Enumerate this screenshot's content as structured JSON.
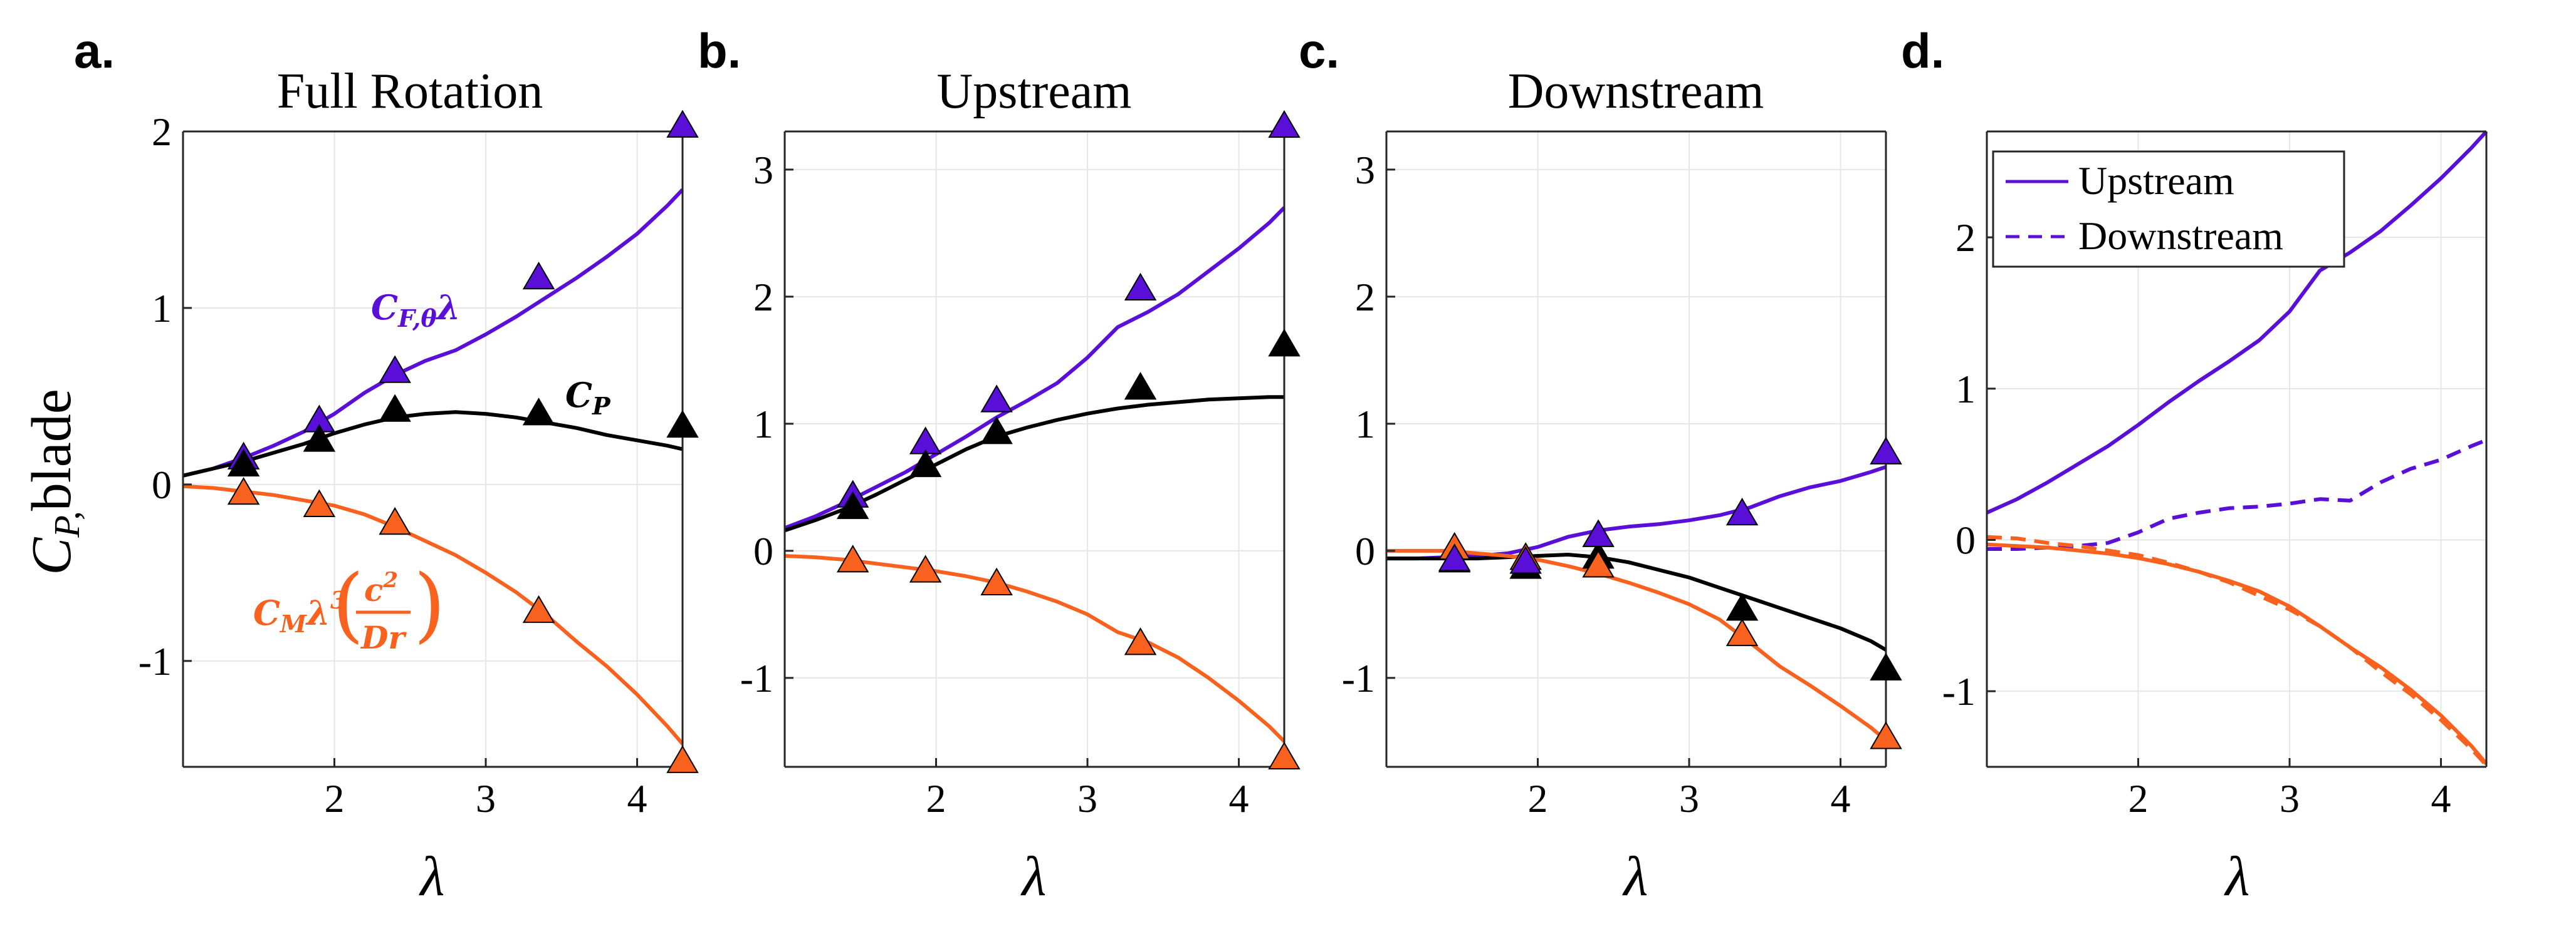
{
  "figure": {
    "colors": {
      "purple": "#5a0fd8",
      "black": "#000000",
      "orange": "#f9621e",
      "grid": "#e6e6e6",
      "axis": "#262626"
    },
    "ylabel": {
      "main": "C",
      "sub": "P,",
      "tail": "blade"
    },
    "xlabel": "λ",
    "annotations": {
      "cf": {
        "main": "C",
        "sub": "F,θ",
        "tail": "λ"
      },
      "cp": {
        "main": "C",
        "sub": "P"
      },
      "cm": {
        "main": "C",
        "sub": "M",
        "mid": "λ",
        "sup": "3",
        "frac_num": "c",
        "frac_num_sup": "2",
        "frac_den": "Dr"
      }
    }
  },
  "chart_data": [
    {
      "type": "line",
      "letter": "a.",
      "title": "Full Rotation",
      "xlim": [
        1.0,
        4.3
      ],
      "ylim": [
        -1.6,
        2.0
      ],
      "xticks": [
        2,
        3,
        4
      ],
      "yticks": [
        -1,
        0,
        1,
        2
      ],
      "xtick_labels": [
        "2",
        "3",
        "4"
      ],
      "ytick_labels": [
        "-1",
        "0",
        "1",
        "2"
      ],
      "series": [
        {
          "name": "C_F,θ λ",
          "color": "purple",
          "dash": "solid",
          "x": [
            1.0,
            1.2,
            1.4,
            1.6,
            1.8,
            2.0,
            2.2,
            2.4,
            2.6,
            2.8,
            3.0,
            3.2,
            3.4,
            3.6,
            3.8,
            4.0,
            4.2,
            4.3
          ],
          "y": [
            0.05,
            0.09,
            0.15,
            0.22,
            0.3,
            0.4,
            0.52,
            0.62,
            0.7,
            0.76,
            0.85,
            0.95,
            1.06,
            1.17,
            1.29,
            1.42,
            1.58,
            1.67
          ]
        },
        {
          "name": "C_P",
          "color": "black",
          "dash": "solid",
          "x": [
            1.0,
            1.2,
            1.4,
            1.6,
            1.8,
            2.0,
            2.2,
            2.4,
            2.6,
            2.8,
            3.0,
            3.2,
            3.4,
            3.6,
            3.8,
            4.0,
            4.2,
            4.3
          ],
          "y": [
            0.05,
            0.09,
            0.13,
            0.18,
            0.23,
            0.29,
            0.34,
            0.38,
            0.4,
            0.41,
            0.4,
            0.38,
            0.35,
            0.32,
            0.28,
            0.25,
            0.22,
            0.2
          ]
        },
        {
          "name": "C_M λ^3 (c^2/Dr)",
          "color": "orange",
          "dash": "solid",
          "x": [
            1.0,
            1.2,
            1.4,
            1.6,
            1.8,
            2.0,
            2.2,
            2.4,
            2.6,
            2.8,
            3.0,
            3.2,
            3.4,
            3.6,
            3.8,
            4.0,
            4.2,
            4.3
          ],
          "y": [
            -0.01,
            -0.02,
            -0.04,
            -0.06,
            -0.09,
            -0.12,
            -0.17,
            -0.24,
            -0.32,
            -0.4,
            -0.5,
            -0.61,
            -0.74,
            -0.89,
            -1.03,
            -1.19,
            -1.37,
            -1.47
          ]
        }
      ],
      "markers": [
        {
          "color": "purple",
          "x": [
            1.4,
            1.9,
            2.4,
            3.35,
            4.3
          ],
          "y": [
            0.15,
            0.36,
            0.64,
            1.17,
            2.03
          ]
        },
        {
          "color": "black",
          "x": [
            1.4,
            1.9,
            2.4,
            3.35,
            4.3
          ],
          "y": [
            0.11,
            0.25,
            0.42,
            0.4,
            0.33
          ]
        },
        {
          "color": "orange",
          "x": [
            1.4,
            1.9,
            2.4,
            3.35,
            4.3
          ],
          "y": [
            -0.05,
            -0.12,
            -0.22,
            -0.72,
            -1.57
          ]
        }
      ]
    },
    {
      "type": "line",
      "letter": "b.",
      "title": "Upstream",
      "xlim": [
        1.0,
        4.3
      ],
      "ylim": [
        -1.7,
        3.3
      ],
      "xticks": [
        2,
        3,
        4
      ],
      "yticks": [
        -1,
        0,
        1,
        2,
        3
      ],
      "xtick_labels": [
        "2",
        "3",
        "4"
      ],
      "ytick_labels": [
        "-1",
        "0",
        "1",
        "2",
        "3"
      ],
      "series": [
        {
          "name": "C_F,θ λ",
          "color": "purple",
          "dash": "solid",
          "x": [
            1.0,
            1.2,
            1.4,
            1.6,
            1.8,
            2.0,
            2.2,
            2.4,
            2.6,
            2.8,
            3.0,
            3.2,
            3.4,
            3.6,
            3.8,
            4.0,
            4.2,
            4.3
          ],
          "y": [
            0.18,
            0.27,
            0.38,
            0.5,
            0.62,
            0.76,
            0.9,
            1.05,
            1.18,
            1.32,
            1.52,
            1.76,
            1.88,
            2.02,
            2.2,
            2.38,
            2.58,
            2.7
          ]
        },
        {
          "name": "C_P",
          "color": "black",
          "dash": "solid",
          "x": [
            1.0,
            1.2,
            1.4,
            1.6,
            1.8,
            2.0,
            2.2,
            2.4,
            2.6,
            2.8,
            3.0,
            3.2,
            3.4,
            3.6,
            3.8,
            4.0,
            4.2,
            4.3
          ],
          "y": [
            0.16,
            0.24,
            0.33,
            0.44,
            0.56,
            0.68,
            0.8,
            0.9,
            0.97,
            1.03,
            1.08,
            1.12,
            1.15,
            1.17,
            1.19,
            1.2,
            1.21,
            1.21
          ]
        },
        {
          "name": "C_M λ^3 (c^2/Dr)",
          "color": "orange",
          "dash": "solid",
          "x": [
            1.0,
            1.2,
            1.4,
            1.6,
            1.8,
            2.0,
            2.2,
            2.4,
            2.6,
            2.8,
            3.0,
            3.2,
            3.4,
            3.6,
            3.8,
            4.0,
            4.2,
            4.3
          ],
          "y": [
            -0.04,
            -0.05,
            -0.07,
            -0.1,
            -0.13,
            -0.16,
            -0.2,
            -0.25,
            -0.32,
            -0.4,
            -0.5,
            -0.64,
            -0.72,
            -0.84,
            -1.0,
            -1.18,
            -1.38,
            -1.5
          ]
        }
      ],
      "markers": [
        {
          "color": "purple",
          "x": [
            1.45,
            1.93,
            2.4,
            3.35,
            4.3
          ],
          "y": [
            0.43,
            0.85,
            1.18,
            2.06,
            3.34
          ]
        },
        {
          "color": "black",
          "x": [
            1.45,
            1.93,
            2.4,
            3.35,
            4.3
          ],
          "y": [
            0.34,
            0.67,
            0.93,
            1.28,
            1.62
          ]
        },
        {
          "color": "orange",
          "x": [
            1.45,
            1.93,
            2.4,
            3.35,
            4.3
          ],
          "y": [
            -0.08,
            -0.16,
            -0.26,
            -0.73,
            -1.63
          ]
        }
      ]
    },
    {
      "type": "line",
      "letter": "c.",
      "title": "Downstream",
      "xlim": [
        1.0,
        4.3
      ],
      "ylim": [
        -1.7,
        3.3
      ],
      "xticks": [
        2,
        3,
        4
      ],
      "yticks": [
        -1,
        0,
        1,
        2,
        3
      ],
      "xtick_labels": [
        "2",
        "3",
        "4"
      ],
      "ytick_labels": [
        "-1",
        "0",
        "1",
        "2",
        "3"
      ],
      "series": [
        {
          "name": "C_F,θ λ",
          "color": "purple",
          "dash": "solid",
          "x": [
            1.0,
            1.2,
            1.4,
            1.6,
            1.8,
            2.0,
            2.2,
            2.4,
            2.6,
            2.8,
            3.0,
            3.2,
            3.4,
            3.6,
            3.8,
            4.0,
            4.2,
            4.3
          ],
          "y": [
            -0.06,
            -0.06,
            -0.05,
            -0.04,
            -0.02,
            0.03,
            0.11,
            0.16,
            0.19,
            0.21,
            0.24,
            0.28,
            0.34,
            0.43,
            0.5,
            0.55,
            0.62,
            0.66
          ]
        },
        {
          "name": "C_P",
          "color": "black",
          "dash": "solid",
          "x": [
            1.0,
            1.2,
            1.4,
            1.6,
            1.8,
            2.0,
            2.2,
            2.4,
            2.6,
            2.8,
            3.0,
            3.2,
            3.4,
            3.6,
            3.8,
            4.0,
            4.2,
            4.3
          ],
          "y": [
            -0.06,
            -0.06,
            -0.06,
            -0.06,
            -0.05,
            -0.04,
            -0.03,
            -0.05,
            -0.09,
            -0.15,
            -0.21,
            -0.29,
            -0.37,
            -0.45,
            -0.53,
            -0.61,
            -0.71,
            -0.78
          ]
        },
        {
          "name": "C_M λ^3 (c^2/Dr)",
          "color": "orange",
          "dash": "solid",
          "x": [
            1.0,
            1.2,
            1.4,
            1.6,
            1.8,
            2.0,
            2.2,
            2.4,
            2.6,
            2.8,
            3.0,
            3.2,
            3.4,
            3.6,
            3.8,
            4.0,
            4.2,
            4.3
          ],
          "y": [
            0.0,
            0.0,
            0.0,
            -0.02,
            -0.04,
            -0.07,
            -0.12,
            -0.18,
            -0.25,
            -0.33,
            -0.42,
            -0.54,
            -0.72,
            -0.91,
            -1.06,
            -1.22,
            -1.39,
            -1.49
          ]
        }
      ],
      "markers": [
        {
          "color": "black",
          "x": [
            1.45,
            1.92,
            2.4,
            3.35,
            4.3
          ],
          "y": [
            -0.08,
            -0.13,
            -0.05,
            -0.46,
            -0.93
          ]
        },
        {
          "color": "orange",
          "x": [
            1.45,
            1.92,
            2.4,
            3.35,
            4.3
          ],
          "y": [
            0.02,
            -0.06,
            -0.12,
            -0.66,
            -1.47
          ]
        },
        {
          "color": "purple",
          "x": [
            1.45,
            1.92,
            2.4,
            3.35,
            4.3
          ],
          "y": [
            -0.07,
            -0.09,
            0.12,
            0.29,
            0.77
          ]
        }
      ]
    },
    {
      "type": "line",
      "letter": "d.",
      "title": "",
      "xlim": [
        1.0,
        4.3
      ],
      "ylim": [
        -1.5,
        2.7
      ],
      "xticks": [
        2,
        3,
        4
      ],
      "yticks": [
        -1,
        0,
        1,
        2
      ],
      "xtick_labels": [
        "2",
        "3",
        "4"
      ],
      "ytick_labels": [
        "-1",
        "0",
        "1",
        "2"
      ],
      "legend": {
        "placement": "top-left",
        "entries": [
          {
            "label": "Upstream",
            "color": "purple",
            "dash": "solid"
          },
          {
            "label": "Downstream",
            "color": "purple",
            "dash": "dashed"
          }
        ]
      },
      "series": [
        {
          "name": "Upstream C_F,θ λ",
          "color": "purple",
          "dash": "solid",
          "x": [
            1.0,
            1.2,
            1.4,
            1.6,
            1.8,
            2.0,
            2.2,
            2.4,
            2.6,
            2.8,
            3.0,
            3.2,
            3.4,
            3.6,
            3.8,
            4.0,
            4.2,
            4.3
          ],
          "y": [
            0.18,
            0.27,
            0.38,
            0.5,
            0.62,
            0.76,
            0.91,
            1.05,
            1.18,
            1.32,
            1.51,
            1.78,
            1.9,
            2.04,
            2.21,
            2.39,
            2.59,
            2.7
          ]
        },
        {
          "name": "Downstream C_F,θ λ",
          "color": "purple",
          "dash": "dashed",
          "x": [
            1.0,
            1.2,
            1.4,
            1.6,
            1.8,
            2.0,
            2.2,
            2.4,
            2.6,
            2.8,
            3.0,
            3.2,
            3.4,
            3.6,
            3.8,
            4.0,
            4.2,
            4.3
          ],
          "y": [
            -0.06,
            -0.06,
            -0.05,
            -0.04,
            -0.02,
            0.05,
            0.14,
            0.18,
            0.21,
            0.22,
            0.24,
            0.27,
            0.26,
            0.38,
            0.47,
            0.53,
            0.62,
            0.66
          ]
        },
        {
          "name": "Upstream C_M",
          "color": "orange",
          "dash": "solid",
          "x": [
            1.0,
            1.2,
            1.4,
            1.6,
            1.8,
            2.0,
            2.2,
            2.4,
            2.6,
            2.8,
            3.0,
            3.2,
            3.4,
            3.6,
            3.8,
            4.0,
            4.2,
            4.3
          ],
          "y": [
            -0.03,
            -0.04,
            -0.05,
            -0.07,
            -0.09,
            -0.12,
            -0.16,
            -0.21,
            -0.27,
            -0.34,
            -0.44,
            -0.57,
            -0.71,
            -0.84,
            -0.99,
            -1.16,
            -1.36,
            -1.48
          ]
        },
        {
          "name": "Downstream C_M",
          "color": "orange",
          "dash": "dashed",
          "x": [
            1.0,
            1.2,
            1.4,
            1.6,
            1.8,
            2.0,
            2.2,
            2.4,
            2.6,
            2.8,
            3.0,
            3.2,
            3.4,
            3.6,
            3.8,
            4.0,
            4.2,
            4.3
          ],
          "y": [
            0.02,
            0.01,
            -0.02,
            -0.04,
            -0.07,
            -0.1,
            -0.15,
            -0.21,
            -0.28,
            -0.37,
            -0.46,
            -0.57,
            -0.71,
            -0.87,
            -1.02,
            -1.19,
            -1.38,
            -1.49
          ]
        }
      ],
      "markers": []
    }
  ]
}
